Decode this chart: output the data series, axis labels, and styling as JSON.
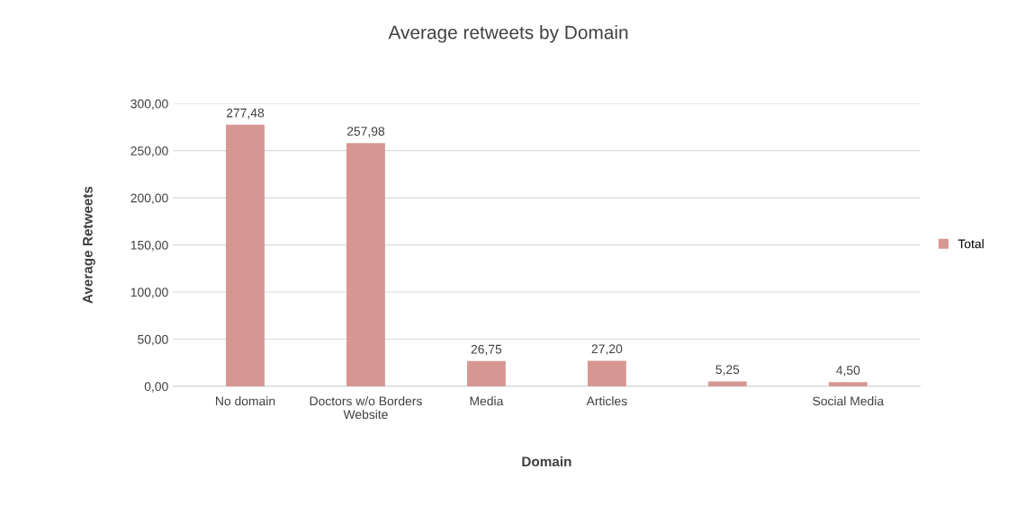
{
  "chart_data": {
    "type": "bar",
    "title": "Average retweets by Domain",
    "xlabel": "Domain",
    "ylabel": "Average Retweets",
    "categories": [
      "No domain",
      "Doctors w/o Borders\nWebsite",
      "Media",
      "Articles",
      null,
      "Social Media"
    ],
    "series": [
      {
        "name": "Total",
        "color": "#d69793",
        "values": [
          277.48,
          257.98,
          26.75,
          27.2,
          5.25,
          4.5
        ],
        "value_labels": [
          "277,48",
          "257,98",
          "26,75",
          "27,20",
          "5,25",
          "4,50"
        ]
      }
    ],
    "ylim": [
      0,
      300
    ],
    "yticks": [
      {
        "value": 0,
        "label": "0,00"
      },
      {
        "value": 50,
        "label": "50,00"
      },
      {
        "value": 100,
        "label": "100,00"
      },
      {
        "value": 150,
        "label": "150,00"
      },
      {
        "value": 200,
        "label": "200,00"
      },
      {
        "value": 250,
        "label": "250,00"
      },
      {
        "value": 300,
        "label": "300,00"
      }
    ],
    "grid": "y",
    "legend": "right"
  }
}
